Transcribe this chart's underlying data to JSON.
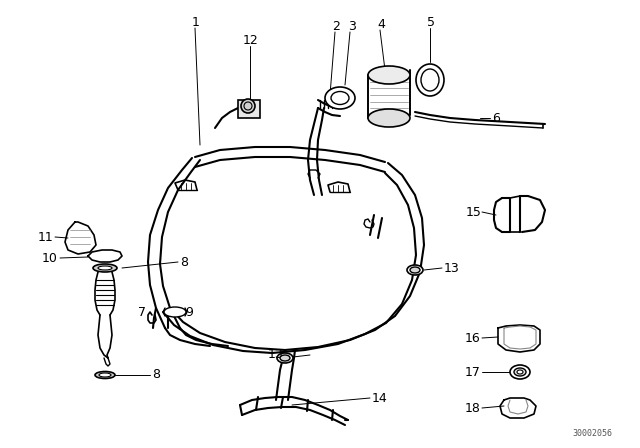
{
  "bg_color": "#ffffff",
  "line_color": "#000000",
  "watermark": "30002056",
  "fig_width": 6.4,
  "fig_height": 4.48,
  "dpi": 100
}
